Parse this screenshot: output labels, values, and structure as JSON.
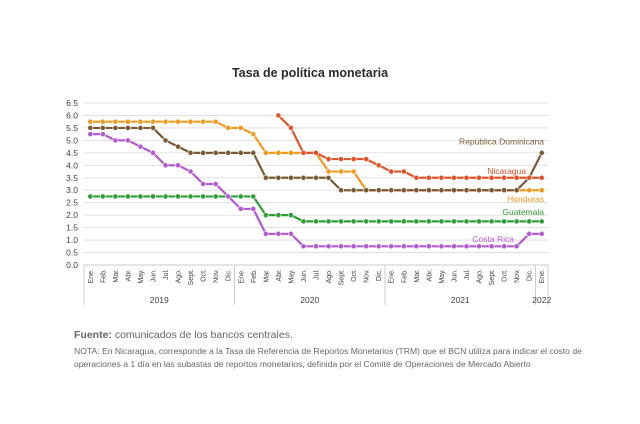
{
  "chart_data": {
    "type": "line",
    "title": "Tasa de política monetaria",
    "ylim": [
      0,
      6.5
    ],
    "yticks": [
      "0.0",
      "0.5",
      "1.0",
      "1.5",
      "2.0",
      "2.5",
      "3.0",
      "3.5",
      "4.0",
      "4.5",
      "5.0",
      "5.5",
      "6.0",
      "6.5"
    ],
    "grid": "horizontal",
    "categories": [
      "Ene.",
      "Feb.",
      "Mar.",
      "Abr.",
      "May.",
      "Jun.",
      "Jul.",
      "Ago.",
      "Sept.",
      "Oct.",
      "Nov.",
      "Dic.",
      "Ene.",
      "Feb.",
      "Mar.",
      "Abr.",
      "May.",
      "Jun.",
      "Jul.",
      "Ago.",
      "Sept.",
      "Oct.",
      "Nov.",
      "Dic.",
      "Ene.",
      "Feb.",
      "Mar.",
      "Abr.",
      "May.",
      "Jun.",
      "Jul.",
      "Ago.",
      "Sept.",
      "Oct.",
      "Nov.",
      "Dic.",
      "Ene."
    ],
    "years": [
      {
        "label": "2019",
        "start": 0,
        "end": 11
      },
      {
        "label": "2020",
        "start": 12,
        "end": 23
      },
      {
        "label": "2021",
        "start": 24,
        "end": 35
      },
      {
        "label": "2022",
        "start": 36,
        "end": 36
      }
    ],
    "series": [
      {
        "name": "Honduras",
        "color": "#f29a1e",
        "values": [
          5.75,
          5.75,
          5.75,
          5.75,
          5.75,
          5.75,
          5.75,
          5.75,
          5.75,
          5.75,
          5.75,
          5.5,
          5.5,
          5.25,
          4.5,
          4.5,
          4.5,
          4.5,
          4.5,
          3.75,
          3.75,
          3.75,
          3.0,
          3.0,
          3.0,
          3.0,
          3.0,
          3.0,
          3.0,
          3.0,
          3.0,
          3.0,
          3.0,
          3.0,
          3.0,
          3.0,
          3.0
        ]
      },
      {
        "name": "República Dominicana",
        "color": "#7a5a36",
        "values": [
          5.5,
          5.5,
          5.5,
          5.5,
          5.5,
          5.5,
          5.0,
          4.75,
          4.5,
          4.5,
          4.5,
          4.5,
          4.5,
          4.5,
          3.5,
          3.5,
          3.5,
          3.5,
          3.5,
          3.5,
          3.0,
          3.0,
          3.0,
          3.0,
          3.0,
          3.0,
          3.0,
          3.0,
          3.0,
          3.0,
          3.0,
          3.0,
          3.0,
          3.0,
          3.0,
          3.5,
          4.5
        ]
      },
      {
        "name": "Nicaragua",
        "color": "#e0532a",
        "values": [
          null,
          null,
          null,
          null,
          null,
          null,
          null,
          null,
          null,
          null,
          null,
          null,
          null,
          null,
          null,
          6.0,
          5.5,
          4.5,
          4.5,
          4.25,
          4.25,
          4.25,
          4.25,
          4.0,
          3.75,
          3.75,
          3.5,
          3.5,
          3.5,
          3.5,
          3.5,
          3.5,
          3.5,
          3.5,
          3.5,
          3.5,
          3.5
        ]
      },
      {
        "name": "Guatemala",
        "color": "#2e9e35",
        "values": [
          2.75,
          2.75,
          2.75,
          2.75,
          2.75,
          2.75,
          2.75,
          2.75,
          2.75,
          2.75,
          2.75,
          2.75,
          2.75,
          2.75,
          2.0,
          2.0,
          2.0,
          1.75,
          1.75,
          1.75,
          1.75,
          1.75,
          1.75,
          1.75,
          1.75,
          1.75,
          1.75,
          1.75,
          1.75,
          1.75,
          1.75,
          1.75,
          1.75,
          1.75,
          1.75,
          1.75,
          1.75
        ]
      },
      {
        "name": "Costa Rica",
        "color": "#b35ad1",
        "values": [
          5.25,
          5.25,
          5.0,
          5.0,
          4.75,
          4.5,
          4.0,
          4.0,
          3.75,
          3.25,
          3.25,
          2.75,
          2.25,
          2.25,
          1.25,
          1.25,
          1.25,
          0.75,
          0.75,
          0.75,
          0.75,
          0.75,
          0.75,
          0.75,
          0.75,
          0.75,
          0.75,
          0.75,
          0.75,
          0.75,
          0.75,
          0.75,
          0.75,
          0.75,
          0.75,
          1.25,
          1.25
        ]
      }
    ]
  },
  "caption": {
    "source_label": "Fuente:",
    "source_text": " comunicados de los bancos centrales.",
    "note": "NOTA: En Nicaragua, corresponde a la Tasa de Referencia de Reportos Monetarios (TRM) que el BCN utiliza para indicar el costo de operaciones a 1 día en las subastas de reportos monetarios, definida por el Comité de Operaciones de Mercado Abierto"
  }
}
